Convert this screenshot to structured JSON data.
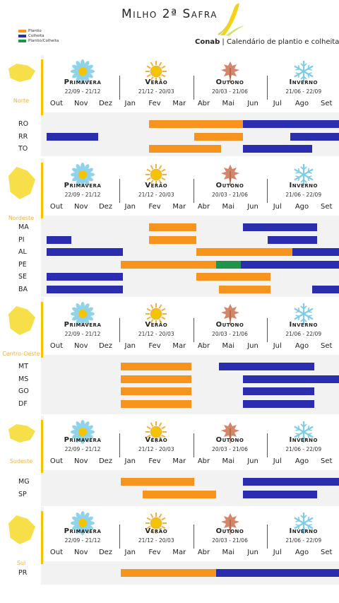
{
  "header": {
    "title": "Milho 2ª Safra",
    "subtitle_brand": "Conab",
    "subtitle_text": "Calendário de plantio e colheita"
  },
  "colors": {
    "plantio": "#f7941d",
    "colheita": "#2b2db0",
    "plantio_colheita": "#20944a",
    "accent": "#f5c400",
    "region_text": "#f2b33d"
  },
  "legend": [
    {
      "label": "Plantio",
      "color": "#f7941d"
    },
    {
      "label": "Colheita",
      "color": "#2b2db0"
    },
    {
      "label": "Plantio/Colheita",
      "color": "#20944a"
    }
  ],
  "seasons": [
    {
      "name": "Primavera",
      "dates": "22/09 - 21/12",
      "icon": "flower-icon"
    },
    {
      "name": "Verão",
      "dates": "21/12 - 20/03",
      "icon": "sun-icon"
    },
    {
      "name": "Outono",
      "dates": "20/03 - 21/06",
      "icon": "leaf-icon"
    },
    {
      "name": "Inverno",
      "dates": "21/06 - 22/09",
      "icon": "snowflake-icon"
    }
  ],
  "months": [
    "Out",
    "Nov",
    "Dez",
    "Jan",
    "Fev",
    "Mar",
    "Abr",
    "Mai",
    "Jun",
    "Jul",
    "Ago",
    "Set"
  ],
  "chart_data": {
    "type": "gantt",
    "title": "Milho 2ª Safra",
    "x_unit": "month index (0 = Out, 12 = end of Set)",
    "regions": [
      {
        "name": "Norte",
        "states": [
          {
            "label": "RO",
            "bars": [
              {
                "start": 4.25,
                "end": 8.1,
                "kind": "plantio"
              },
              {
                "start": 8.1,
                "end": 12,
                "kind": "colheita"
              }
            ]
          },
          {
            "label": "RR",
            "bars": [
              {
                "start": 0.1,
                "end": 2.2,
                "kind": "colheita"
              },
              {
                "start": 6.1,
                "end": 8.1,
                "kind": "plantio"
              },
              {
                "start": 10,
                "end": 12,
                "kind": "colheita"
              }
            ]
          },
          {
            "label": "TO",
            "bars": [
              {
                "start": 4.25,
                "end": 7.2,
                "kind": "plantio"
              },
              {
                "start": 8.1,
                "end": 10.9,
                "kind": "colheita"
              }
            ]
          }
        ]
      },
      {
        "name": "Nordeste",
        "states": [
          {
            "label": "MA",
            "bars": [
              {
                "start": 4.25,
                "end": 6.2,
                "kind": "plantio"
              },
              {
                "start": 8.1,
                "end": 11.1,
                "kind": "colheita"
              }
            ]
          },
          {
            "label": "PI",
            "bars": [
              {
                "start": 0.1,
                "end": 1.1,
                "kind": "colheita"
              },
              {
                "start": 4.25,
                "end": 6.2,
                "kind": "plantio"
              },
              {
                "start": 9.1,
                "end": 11.1,
                "kind": "colheita"
              }
            ]
          },
          {
            "label": "AL",
            "bars": [
              {
                "start": 0.1,
                "end": 3.2,
                "kind": "colheita"
              },
              {
                "start": 6.2,
                "end": 10.1,
                "kind": "plantio"
              },
              {
                "start": 10.1,
                "end": 12,
                "kind": "colheita"
              }
            ]
          },
          {
            "label": "PE",
            "bars": [
              {
                "start": 3.1,
                "end": 7.0,
                "kind": "plantio"
              },
              {
                "start": 7.0,
                "end": 8.0,
                "kind": "plantio_colheita"
              },
              {
                "start": 8.0,
                "end": 12,
                "kind": "colheita"
              }
            ]
          },
          {
            "label": "SE",
            "bars": [
              {
                "start": 0.1,
                "end": 3.2,
                "kind": "colheita"
              },
              {
                "start": 6.2,
                "end": 9.2,
                "kind": "plantio"
              }
            ]
          },
          {
            "label": "BA",
            "bars": [
              {
                "start": 0.1,
                "end": 3.2,
                "kind": "colheita"
              },
              {
                "start": 7.1,
                "end": 9.2,
                "kind": "plantio"
              },
              {
                "start": 10.9,
                "end": 12,
                "kind": "colheita"
              }
            ]
          }
        ]
      },
      {
        "name": "Centro-Oeste",
        "states": [
          {
            "label": "MT",
            "bars": [
              {
                "start": 3.1,
                "end": 6.0,
                "kind": "plantio"
              },
              {
                "start": 7.1,
                "end": 11.0,
                "kind": "colheita"
              }
            ]
          },
          {
            "label": "MS",
            "bars": [
              {
                "start": 3.1,
                "end": 6.0,
                "kind": "plantio"
              },
              {
                "start": 8.1,
                "end": 12,
                "kind": "colheita"
              }
            ]
          },
          {
            "label": "GO",
            "bars": [
              {
                "start": 3.1,
                "end": 6.0,
                "kind": "plantio"
              },
              {
                "start": 8.1,
                "end": 11.0,
                "kind": "colheita"
              }
            ]
          },
          {
            "label": "DF",
            "bars": [
              {
                "start": 3.1,
                "end": 6.0,
                "kind": "plantio"
              },
              {
                "start": 8.1,
                "end": 11.0,
                "kind": "colheita"
              }
            ]
          }
        ]
      },
      {
        "name": "Sudeste",
        "states": [
          {
            "label": "MG",
            "bars": [
              {
                "start": 3.1,
                "end": 6.1,
                "kind": "plantio"
              },
              {
                "start": 8.1,
                "end": 12,
                "kind": "colheita"
              }
            ]
          },
          {
            "label": "SP",
            "bars": [
              {
                "start": 4.0,
                "end": 7.0,
                "kind": "plantio"
              },
              {
                "start": 8.1,
                "end": 11.1,
                "kind": "colheita"
              }
            ]
          }
        ]
      },
      {
        "name": "Sul",
        "states": [
          {
            "label": "PR",
            "bars": [
              {
                "start": 3.1,
                "end": 7.0,
                "kind": "plantio"
              },
              {
                "start": 7.0,
                "end": 12,
                "kind": "colheita"
              }
            ]
          }
        ]
      }
    ]
  }
}
